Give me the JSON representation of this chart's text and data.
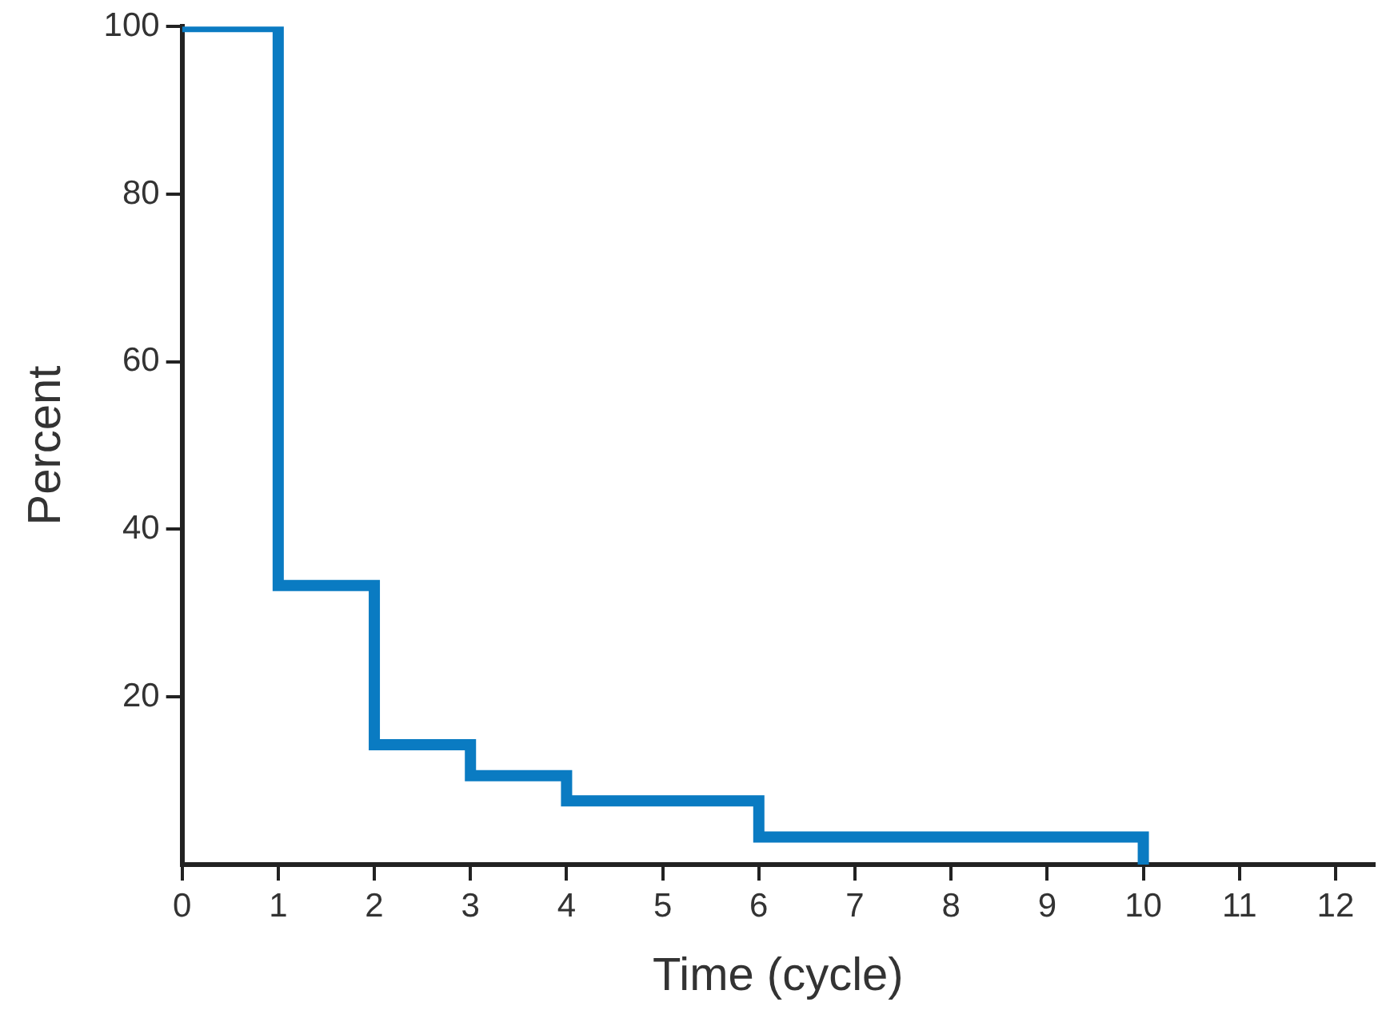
{
  "chart_data": {
    "type": "step",
    "xlabel": "Time (cycle)",
    "ylabel": "Percent",
    "x": [
      0,
      1,
      2,
      3,
      4,
      6,
      10
    ],
    "series": [
      {
        "color": "#0a7bc2",
        "values": [
          100,
          33.3,
          14.3,
          10.6,
          7.6,
          3.3,
          0
        ]
      }
    ],
    "xlim": [
      0,
      12.4
    ],
    "xticks": [
      0,
      1,
      2,
      3,
      4,
      5,
      6,
      7,
      8,
      9,
      10,
      11,
      12
    ],
    "ylim": [
      0,
      100
    ],
    "yticks": [
      20,
      40,
      60,
      80,
      100
    ],
    "grid": false,
    "legend": false,
    "marker": "none",
    "line_style": "solid"
  }
}
